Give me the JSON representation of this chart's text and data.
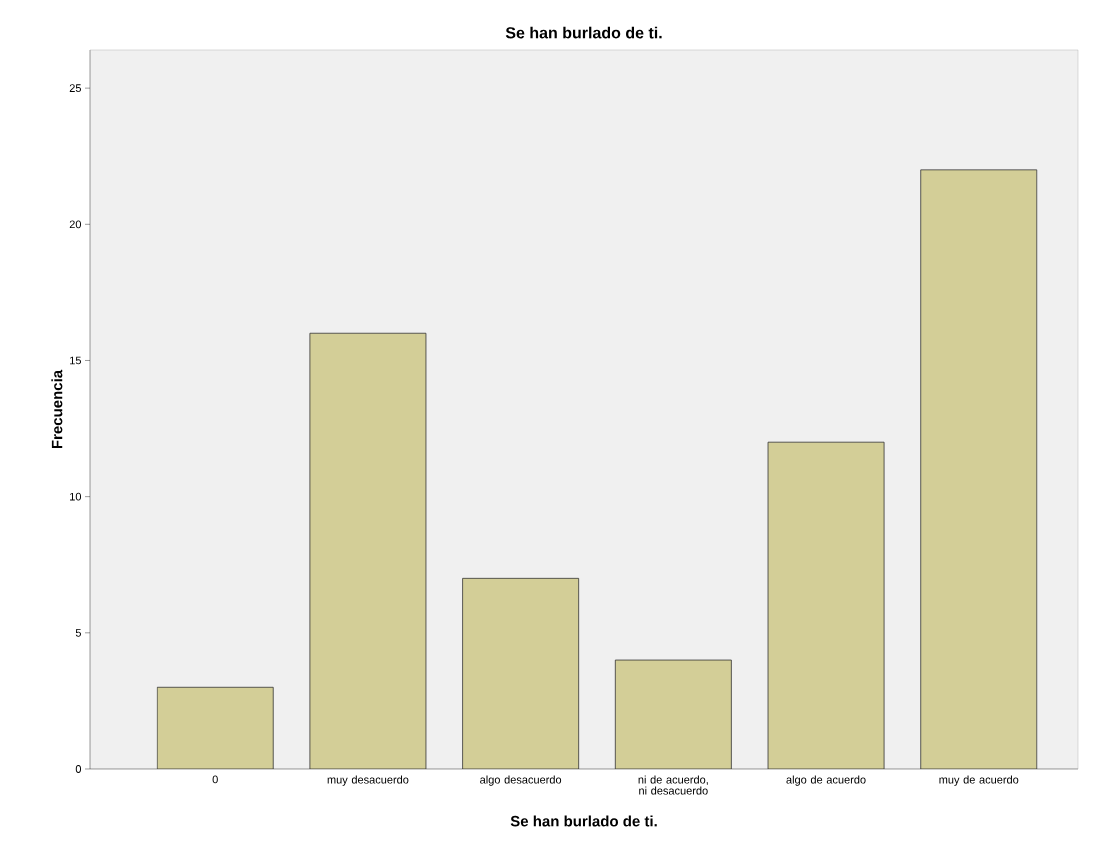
{
  "chart_data": {
    "type": "bar",
    "title": "Se han burlado de ti.",
    "xlabel": "Se han burlado de ti.",
    "ylabel": "Frecuencia",
    "categories": [
      "0",
      "muy desacuerdo",
      "algo desacuerdo",
      "ni de acuerdo, ni desacuerdo",
      "algo de acuerdo",
      "muy de acuerdo"
    ],
    "values": [
      3,
      16,
      7,
      4,
      12,
      22
    ],
    "color": "#d3ce97",
    "ylim": [
      0,
      26.4
    ],
    "yticks": [
      0,
      5,
      10,
      15,
      20,
      25
    ],
    "grid": false
  }
}
